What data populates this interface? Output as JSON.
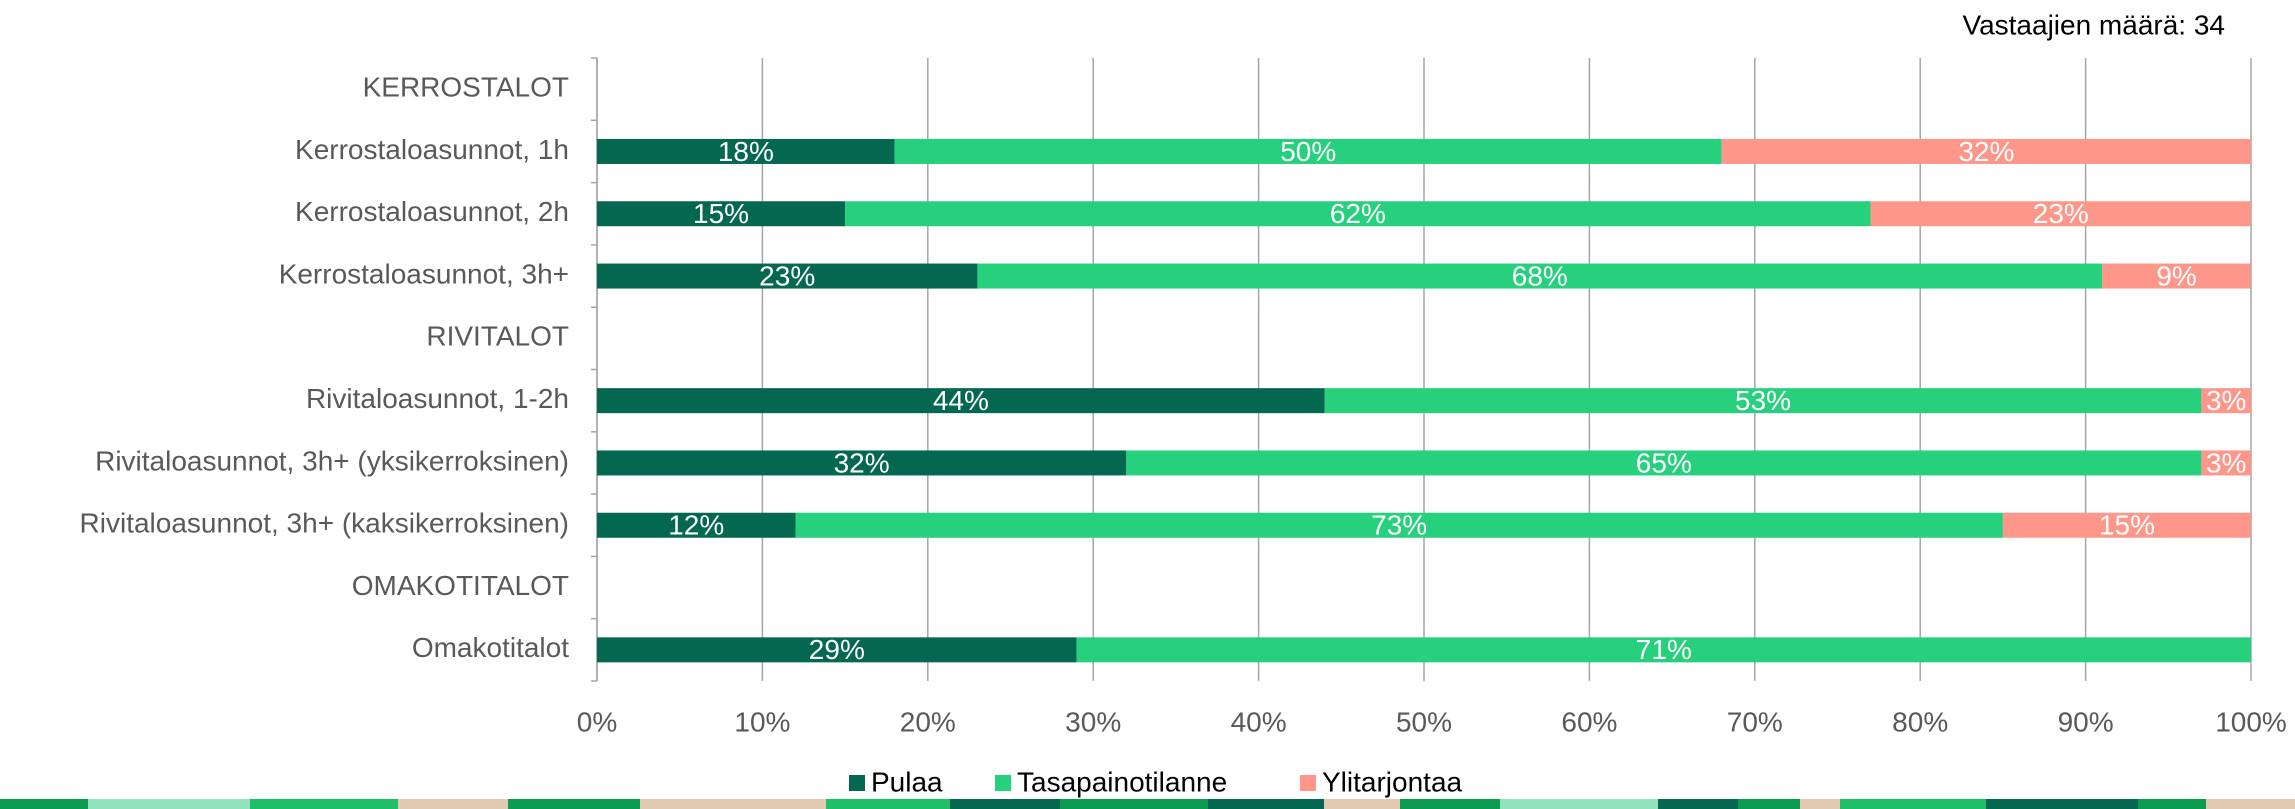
{
  "chart_data": {
    "type": "stacked-bar-horizontal",
    "annotation": "Vastaajien määrä: 34",
    "categories": [
      "KERROSTALOT",
      "Kerrostaloasunnot, 1h",
      "Kerrostaloasunnot, 2h",
      "Kerrostaloasunnot, 3h+",
      "RIVITALOT",
      "Rivitaloasunnot, 1-2h",
      "Rivitaloasunnot, 3h+ (yksikerroksinen)",
      "Rivitaloasunnot, 3h+ (kaksikerroksinen)",
      "OMAKOTITALOT",
      "Omakotitalot"
    ],
    "series": [
      {
        "name": "Pulaa",
        "color": "#04674f",
        "values": [
          null,
          18,
          15,
          23,
          null,
          44,
          32,
          12,
          null,
          29
        ],
        "value_labels": [
          null,
          "18%",
          "15%",
          "23%",
          null,
          "44%",
          "32%",
          "12%",
          null,
          "29%"
        ]
      },
      {
        "name": "Tasapainotilanne",
        "color": "#26d07c",
        "values": [
          null,
          50,
          62,
          68,
          null,
          53,
          65,
          73,
          null,
          71
        ],
        "value_labels": [
          null,
          "50%",
          "62%",
          "68%",
          null,
          "53%",
          "65%",
          "73%",
          null,
          "71%"
        ]
      },
      {
        "name": "Ylitarjontaa",
        "color": "#ff968a",
        "values": [
          null,
          32,
          23,
          9,
          null,
          3,
          3,
          15,
          null,
          null
        ],
        "value_labels": [
          null,
          "32%",
          "23%",
          "9%",
          null,
          "3%",
          "3%",
          "15%",
          null,
          null
        ]
      }
    ],
    "xlim": [
      0,
      100
    ],
    "xticks": [
      {
        "value": 0,
        "label": "0%"
      },
      {
        "value": 10,
        "label": "10%"
      },
      {
        "value": 20,
        "label": "20%"
      },
      {
        "value": 30,
        "label": "30%"
      },
      {
        "value": 40,
        "label": "40%"
      },
      {
        "value": 50,
        "label": "50%"
      },
      {
        "value": 60,
        "label": "60%"
      },
      {
        "value": 70,
        "label": "70%"
      },
      {
        "value": 80,
        "label": "80%"
      },
      {
        "value": 90,
        "label": "90%"
      },
      {
        "value": 100,
        "label": "100%"
      }
    ],
    "grid": true,
    "legend": "bottom"
  }
}
